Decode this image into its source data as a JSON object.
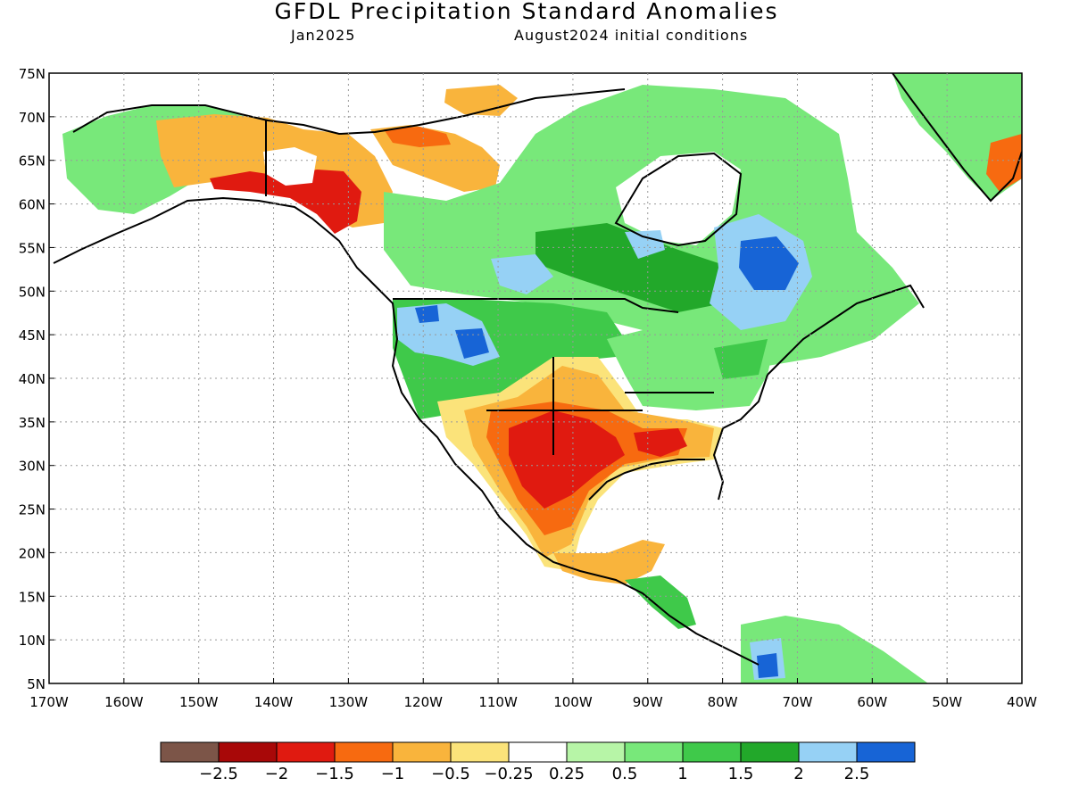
{
  "title": "GFDL Precipitation Standard Anomalies",
  "subtitle_left": "Jan2025",
  "subtitle_right": "August2024 initial conditions",
  "lat_labels": [
    "75N",
    "70N",
    "65N",
    "60N",
    "55N",
    "50N",
    "45N",
    "40N",
    "35N",
    "30N",
    "25N",
    "20N",
    "15N",
    "10N",
    "5N"
  ],
  "lon_labels": [
    "170W",
    "160W",
    "150W",
    "140W",
    "130W",
    "120W",
    "110W",
    "100W",
    "90W",
    "80W",
    "70W",
    "60W",
    "50W",
    "40W"
  ],
  "colorbar": {
    "colors": [
      "#7c5548",
      "#a80808",
      "#e01a10",
      "#f76a10",
      "#f9b43c",
      "#fbe37a",
      "#ffffff",
      "#b7f5a7",
      "#78e87a",
      "#3fc94a",
      "#22a82a",
      "#96d1f5",
      "#1764d6"
    ],
    "labels": [
      "−2.5",
      "−2",
      "−1.5",
      "−1",
      "−0.5",
      "−0.25",
      "0.25",
      "0.5",
      "1",
      "1.5",
      "2",
      "2.5"
    ]
  },
  "palette": {
    "white": "#ffffff",
    "yellow": "#fbe37a",
    "orange": "#f9b43c",
    "orange_dark": "#f76a10",
    "red": "#e01a10",
    "green_light": "#b7f5a7",
    "green": "#78e87a",
    "green_mid": "#3fc94a",
    "green_dark": "#22a82a",
    "blue_light": "#96d1f5",
    "blue": "#1764d6"
  }
}
